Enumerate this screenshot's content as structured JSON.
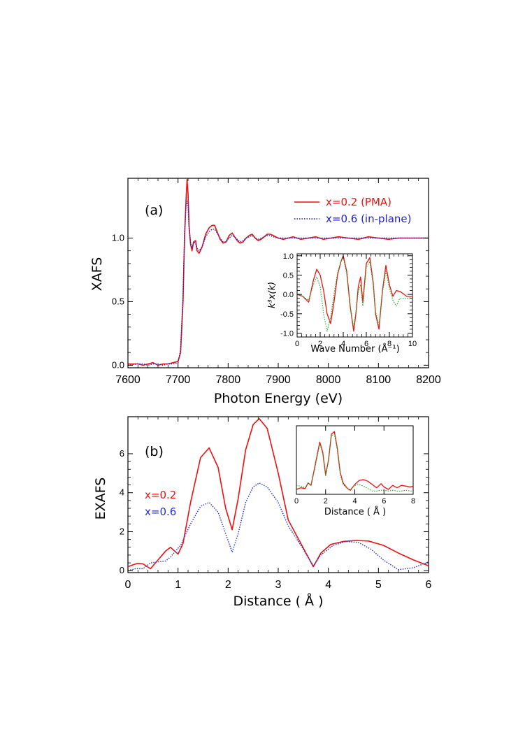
{
  "chart_data": [
    {
      "id": "a",
      "type": "line",
      "panel_label": "(a)",
      "xlabel": "Photon Energy (eV)",
      "ylabel": "XAFS",
      "xlim": [
        7600,
        8200
      ],
      "ylim": [
        -0.02,
        1.47
      ],
      "xticks": [
        7600,
        7700,
        7800,
        7900,
        8000,
        8100,
        8200
      ],
      "yticks": [
        0.0,
        0.5,
        1.0
      ],
      "ytick_labels": [
        "0.0",
        "0.5",
        "1.0"
      ],
      "legend_position": "top-right",
      "series": [
        {
          "name": "x=0.2 (PMA)",
          "color": "#ee1111",
          "style": "solid",
          "x": [
            7600,
            7620,
            7630,
            7640,
            7650,
            7660,
            7670,
            7680,
            7690,
            7700,
            7705,
            7710,
            7713,
            7716,
            7718,
            7720,
            7722,
            7725,
            7728,
            7731,
            7735,
            7738,
            7742,
            7748,
            7755,
            7762,
            7768,
            7773,
            7778,
            7784,
            7790,
            7796,
            7802,
            7808,
            7813,
            7818,
            7824,
            7830,
            7836,
            7842,
            7848,
            7854,
            7860,
            7866,
            7872,
            7878,
            7884,
            7890,
            7900,
            7910,
            7920,
            7930,
            7945,
            7960,
            7975,
            7990,
            8005,
            8020,
            8040,
            8060,
            8080,
            8100,
            8120,
            8140,
            8160,
            8180,
            8200
          ],
          "y": [
            0.01,
            0.01,
            0.0,
            0.01,
            0.02,
            0.0,
            0.01,
            0.01,
            0.02,
            0.03,
            0.1,
            0.5,
            1.0,
            1.3,
            1.46,
            1.35,
            1.1,
            0.95,
            0.9,
            0.97,
            0.98,
            0.9,
            0.88,
            0.93,
            1.03,
            1.08,
            1.1,
            1.1,
            1.05,
            0.99,
            0.96,
            0.97,
            1.02,
            1.04,
            1.01,
            0.98,
            0.96,
            0.97,
            1.0,
            1.02,
            1.03,
            1.0,
            0.98,
            0.99,
            1.01,
            1.03,
            1.03,
            1.02,
            1.0,
            0.99,
            1.0,
            1.01,
            0.99,
            1.0,
            1.01,
            0.99,
            1.0,
            1.01,
            1.0,
            0.99,
            1.01,
            1.0,
            0.99,
            1.0,
            1.0,
            1.0,
            1.0
          ]
        },
        {
          "name": "x=0.6 (in-plane)",
          "color": "#2222cc",
          "style": "dotted",
          "x": [
            7600,
            7620,
            7630,
            7640,
            7650,
            7660,
            7670,
            7680,
            7690,
            7700,
            7705,
            7710,
            7713,
            7716,
            7718,
            7720,
            7722,
            7725,
            7728,
            7731,
            7735,
            7738,
            7742,
            7748,
            7755,
            7762,
            7768,
            7773,
            7778,
            7784,
            7790,
            7796,
            7802,
            7808,
            7813,
            7818,
            7824,
            7830,
            7836,
            7842,
            7848,
            7854,
            7860,
            7866,
            7872,
            7878,
            7884,
            7890,
            7900,
            7910,
            7920,
            7930,
            7945,
            7960,
            7975,
            7990,
            8005,
            8020,
            8040,
            8060,
            8080,
            8100,
            8120,
            8140,
            8160,
            8180,
            8200
          ],
          "y": [
            0.0,
            0.01,
            0.01,
            0.0,
            0.01,
            0.01,
            0.0,
            0.01,
            0.01,
            0.02,
            0.12,
            0.55,
            1.05,
            1.25,
            1.29,
            1.25,
            1.08,
            0.96,
            0.92,
            0.97,
            0.96,
            0.92,
            0.9,
            0.93,
            1.01,
            1.05,
            1.07,
            1.07,
            1.04,
            1.0,
            0.97,
            0.97,
            1.0,
            1.02,
            1.01,
            0.99,
            0.97,
            0.98,
            1.0,
            1.01,
            1.02,
            1.0,
            0.99,
            1.0,
            1.01,
            1.02,
            1.02,
            1.01,
            1.0,
            1.0,
            1.0,
            1.0,
            1.0,
            1.0,
            1.0,
            1.0,
            1.0,
            1.0,
            1.0,
            1.0,
            1.0,
            1.0,
            1.0,
            1.0,
            1.0,
            1.0,
            1.0
          ]
        }
      ]
    },
    {
      "id": "a-inset",
      "type": "line",
      "xlabel": "Wave Number (Å⁻¹)",
      "ylabel": "k³x(k)",
      "xlim": [
        0,
        10
      ],
      "ylim": [
        -1.1,
        1.05
      ],
      "xticks": [
        0,
        2,
        4,
        6,
        8,
        10
      ],
      "yticks": [
        -1.0,
        -0.5,
        0.0,
        0.5,
        1.0
      ],
      "ytick_labels": [
        "-1.0",
        "-0.5",
        "0.0",
        "0.5",
        "1.0"
      ],
      "series": [
        {
          "name": "x=0.2",
          "color": "#ee1111",
          "style": "solid",
          "x": [
            0,
            0.5,
            1.0,
            1.4,
            1.7,
            2.0,
            2.3,
            2.6,
            2.9,
            3.2,
            3.5,
            3.8,
            4.0,
            4.3,
            4.6,
            4.9,
            5.1,
            5.3,
            5.5,
            5.7,
            6.0,
            6.3,
            6.6,
            6.8,
            7.1,
            7.4,
            7.7,
            8.0,
            8.3,
            8.6,
            8.9,
            9.2,
            9.5,
            10
          ],
          "y": [
            0.0,
            -0.05,
            -0.2,
            0.35,
            0.65,
            0.5,
            0.1,
            -0.5,
            -0.75,
            -0.2,
            0.5,
            0.85,
            1.0,
            0.6,
            -0.3,
            -0.95,
            -0.5,
            0.2,
            0.45,
            -0.2,
            0.8,
            0.95,
            0.3,
            -0.5,
            -0.9,
            0.1,
            0.75,
            0.25,
            -0.05,
            0.1,
            0.08,
            0.02,
            -0.05,
            -0.05
          ]
        },
        {
          "name": "x=0.6",
          "color": "#22aa22",
          "style": "dotted",
          "x": [
            0,
            0.5,
            1.0,
            1.4,
            1.7,
            2.0,
            2.3,
            2.6,
            2.9,
            3.2,
            3.5,
            3.8,
            4.0,
            4.3,
            4.6,
            4.9,
            5.1,
            5.3,
            5.5,
            5.7,
            6.0,
            6.3,
            6.6,
            6.8,
            7.1,
            7.4,
            7.7,
            8.0,
            8.3,
            8.6,
            8.9,
            9.2,
            9.5,
            10
          ],
          "y": [
            0.02,
            -0.05,
            -0.15,
            0.25,
            0.45,
            0.2,
            -0.5,
            -0.95,
            -0.6,
            0.0,
            0.55,
            0.85,
            0.95,
            0.55,
            -0.35,
            -0.85,
            -0.45,
            0.05,
            0.25,
            -0.3,
            0.7,
            0.85,
            0.25,
            -0.45,
            -0.8,
            0.05,
            0.6,
            0.15,
            -0.15,
            -0.3,
            -0.1,
            -0.1,
            -0.1,
            -0.08
          ]
        }
      ]
    },
    {
      "id": "b",
      "type": "line",
      "panel_label": "(b)",
      "xlabel": "Distance ( Å )",
      "ylabel": "EXAFS",
      "xlim": [
        0,
        6
      ],
      "ylim": [
        -0.1,
        7.9
      ],
      "xticks": [
        0,
        1,
        2,
        3,
        4,
        5,
        6
      ],
      "yticks": [
        0,
        2,
        4,
        6
      ],
      "ytick_labels": [
        "0",
        "2",
        "4",
        "6"
      ],
      "legend_position": "middle-left",
      "series": [
        {
          "name": "x=0.2",
          "color": "#ee1111",
          "style": "solid",
          "x": [
            0,
            0.1,
            0.2,
            0.3,
            0.45,
            0.6,
            0.75,
            0.85,
            1.0,
            1.1,
            1.25,
            1.45,
            1.62,
            1.8,
            1.95,
            2.08,
            2.2,
            2.35,
            2.5,
            2.62,
            2.78,
            3.0,
            3.2,
            3.45,
            3.7,
            3.85,
            4.05,
            4.3,
            4.55,
            4.8,
            5.1,
            5.4,
            5.7,
            6.0
          ],
          "y": [
            0.2,
            0.3,
            0.38,
            0.35,
            0.1,
            0.55,
            1.0,
            1.2,
            0.85,
            1.4,
            3.5,
            5.8,
            6.3,
            5.3,
            3.2,
            2.1,
            3.7,
            6.2,
            7.5,
            7.8,
            7.3,
            5.0,
            2.6,
            1.4,
            0.2,
            0.9,
            1.35,
            1.5,
            1.55,
            1.52,
            1.3,
            0.9,
            0.55,
            0.25
          ]
        },
        {
          "name": "x=0.6",
          "color": "#2233dd",
          "style": "dotted",
          "x": [
            0,
            0.15,
            0.3,
            0.45,
            0.6,
            0.75,
            0.85,
            0.95,
            1.05,
            1.25,
            1.45,
            1.62,
            1.8,
            1.95,
            2.08,
            2.2,
            2.35,
            2.5,
            2.62,
            2.78,
            3.0,
            3.2,
            3.45,
            3.7,
            3.85,
            4.1,
            4.35,
            4.6,
            4.85,
            5.1,
            5.4,
            5.7,
            6.0
          ],
          "y": [
            0.0,
            0.1,
            0.1,
            0.4,
            0.45,
            0.5,
            0.7,
            1.0,
            1.3,
            2.4,
            3.3,
            3.5,
            3.0,
            1.9,
            0.95,
            1.9,
            3.5,
            4.3,
            4.5,
            4.3,
            3.5,
            2.3,
            1.3,
            0.25,
            0.8,
            1.3,
            1.5,
            1.45,
            1.1,
            0.55,
            0.05,
            0.15,
            0.45
          ]
        }
      ]
    },
    {
      "id": "b-inset",
      "type": "line",
      "xlabel": "Distance ( Å )",
      "ylabel": "",
      "xlim": [
        0,
        8
      ],
      "ylim": [
        -0.2,
        8.2
      ],
      "xticks": [
        0,
        2,
        4,
        6,
        8
      ],
      "yticks": [],
      "series": [
        {
          "name": "x=0.2",
          "color": "#ee1111",
          "style": "solid",
          "x": [
            0,
            0.3,
            0.6,
            0.8,
            1.0,
            1.3,
            1.6,
            1.8,
            2.0,
            2.2,
            2.4,
            2.6,
            2.8,
            3.0,
            3.2,
            3.5,
            3.7,
            4.0,
            4.3,
            4.6,
            4.9,
            5.2,
            5.5,
            5.8,
            6.0,
            6.3,
            6.6,
            6.9,
            7.2,
            7.5,
            7.8,
            8.0
          ],
          "y": [
            0.4,
            0.6,
            0.5,
            1.2,
            0.9,
            3.5,
            6.2,
            5.0,
            2.2,
            4.0,
            7.2,
            7.5,
            5.5,
            2.5,
            1.2,
            0.5,
            0.3,
            1.0,
            1.5,
            1.6,
            1.4,
            1.0,
            0.6,
            1.1,
            0.7,
            0.4,
            0.9,
            0.6,
            0.9,
            0.8,
            0.7,
            0.8
          ]
        },
        {
          "name": "x=0.6",
          "color": "#22aa22",
          "style": "dotted",
          "x": [
            0,
            0.3,
            0.6,
            0.8,
            1.0,
            1.3,
            1.6,
            1.8,
            2.0,
            2.2,
            2.4,
            2.6,
            2.8,
            3.0,
            3.2,
            3.5,
            3.7,
            4.0,
            4.3,
            4.6,
            4.9,
            5.2,
            5.5,
            5.8,
            6.0,
            6.3,
            6.6,
            6.9,
            7.2,
            7.5,
            7.8,
            8.0
          ],
          "y": [
            0.9,
            0.8,
            0.6,
            1.2,
            0.9,
            3.3,
            6.0,
            4.8,
            2.0,
            3.9,
            7.0,
            7.2,
            5.3,
            2.3,
            1.0,
            0.5,
            0.4,
            0.9,
            1.0,
            0.8,
            0.5,
            0.2,
            0.2,
            0.3,
            0.3,
            0.2,
            0.3,
            0.2,
            0.2,
            0.3,
            0.2,
            0.2
          ]
        }
      ]
    }
  ]
}
